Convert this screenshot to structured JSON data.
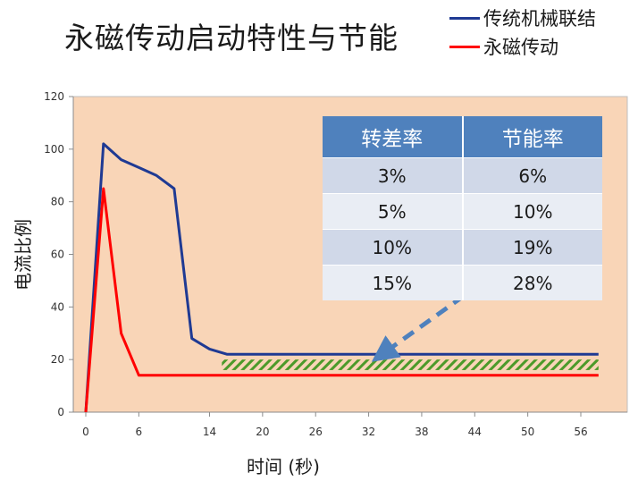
{
  "title": "永磁传动启动特性与节能",
  "legend": [
    {
      "label": "传统机械联结",
      "color": "#1f3a93"
    },
    {
      "label": "永磁传动",
      "color": "#ff0000"
    }
  ],
  "colors": {
    "plot_bg": "#f9d5b7",
    "hatch_green": "#4c9a2a",
    "arrow": "#4f81bd"
  },
  "chart_data": {
    "type": "line",
    "xlabel": "时间 (秒)",
    "ylabel": "电流比例",
    "xlim": [
      0,
      59
    ],
    "ylim": [
      0,
      120
    ],
    "x_ticks": [
      0,
      6,
      14,
      20,
      26,
      32,
      38,
      44,
      50,
      56
    ],
    "y_ticks": [
      0,
      20,
      40,
      60,
      80,
      100,
      120
    ],
    "grid": false,
    "series": [
      {
        "name": "传统机械联结",
        "color": "#1f3a93",
        "x": [
          0,
          2,
          4,
          6,
          8,
          10,
          12,
          14,
          16,
          58
        ],
        "y": [
          0,
          102,
          96,
          93,
          90,
          85,
          28,
          24,
          22,
          22
        ]
      },
      {
        "name": "永磁传动",
        "color": "#ff0000",
        "x": [
          0,
          2,
          4,
          6,
          58
        ],
        "y": [
          0,
          85,
          30,
          14,
          14
        ]
      }
    ],
    "savings_band": {
      "x": [
        16,
        58
      ],
      "y": [
        16,
        20
      ]
    },
    "table": {
      "headers": [
        "转差率",
        "节能率"
      ],
      "rows": [
        [
          "3%",
          "6%"
        ],
        [
          "5%",
          "10%"
        ],
        [
          "10%",
          "19%"
        ],
        [
          "15%",
          "28%"
        ]
      ]
    }
  }
}
